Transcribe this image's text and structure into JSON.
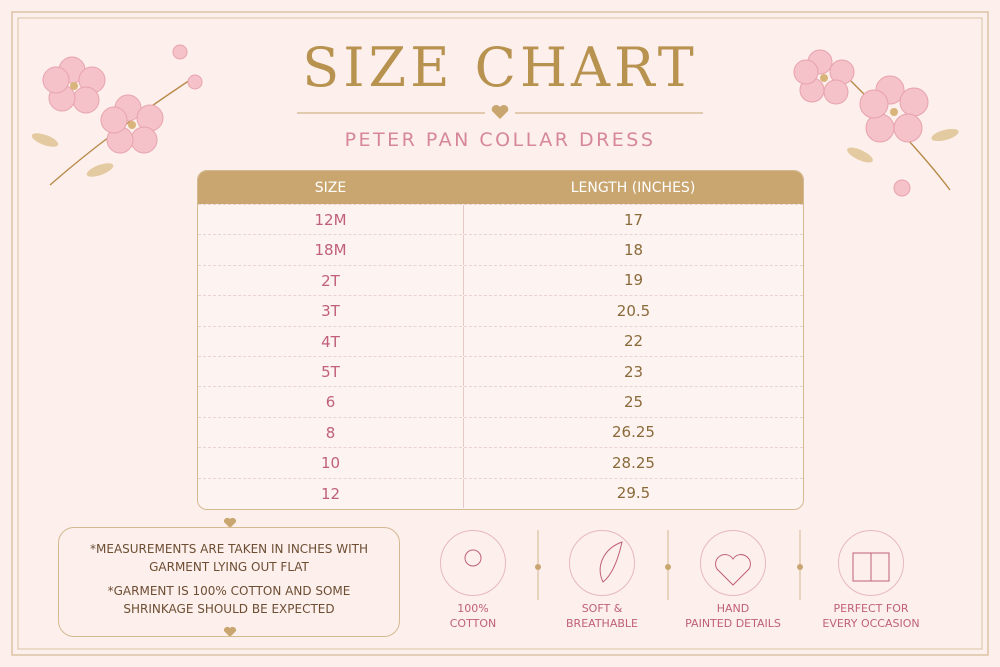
{
  "title": "SIZE CHART",
  "subtitle": "PETER PAN COLLAR DRESS",
  "table": {
    "header": [
      "SIZE",
      "LENGTH (INCHES)"
    ],
    "rows": [
      [
        "12M",
        "17"
      ],
      [
        "18M",
        "18"
      ],
      [
        "2T",
        "19"
      ],
      [
        "3T",
        "20.5"
      ],
      [
        "4T",
        "22"
      ],
      [
        "5T",
        "23"
      ],
      [
        "6",
        "25"
      ],
      [
        "8",
        "26.25"
      ],
      [
        "10",
        "28.25"
      ],
      [
        "12",
        "29.5"
      ]
    ]
  },
  "notes": [
    "*MEASUREMENTS ARE TAKEN IN INCHES WITH GARMENT LYING OUT FLAT",
    "*GARMENT IS 100% COTTON AND SOME SHRINKAGE SHOULD BE EXPECTED"
  ],
  "features": [
    [
      "100%",
      "COTTON"
    ],
    [
      "SOFT &",
      "BREATHABLE"
    ],
    [
      "HAND",
      "PAINTED DETAILS"
    ],
    [
      "PERFECT FOR",
      "EVERY OCCASION"
    ]
  ]
}
